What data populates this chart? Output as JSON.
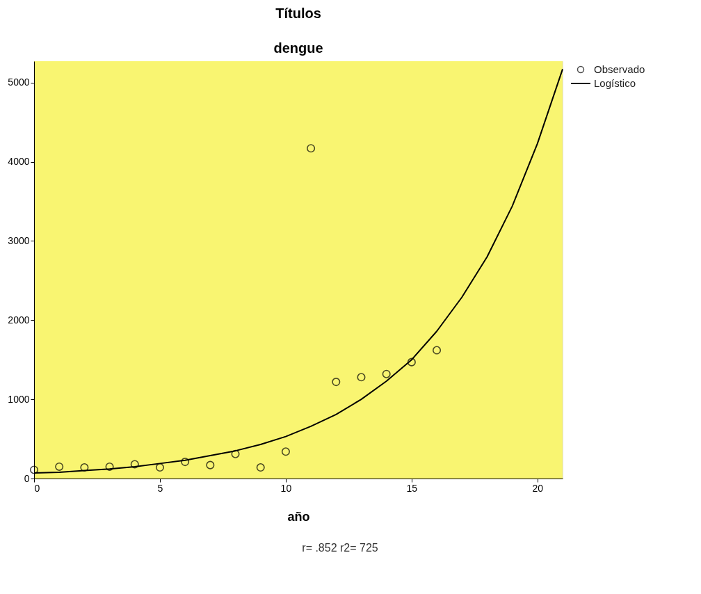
{
  "chart_data": {
    "type": "scatter",
    "title": "Títulos",
    "subtitle": "dengue",
    "xlabel": "año",
    "annotations": [
      "r= .852 r2= 725"
    ],
    "series": [
      {
        "name": "Observado",
        "type": "scatter",
        "marker": "circle",
        "color": "#000000",
        "x": [
          0,
          1,
          2,
          3,
          4,
          5,
          6,
          7,
          8,
          9,
          10,
          11,
          12,
          13,
          14,
          15,
          16
        ],
        "values": [
          110,
          150,
          140,
          150,
          180,
          140,
          210,
          170,
          310,
          140,
          340,
          4170,
          1220,
          1280,
          1320,
          1470,
          1620
        ]
      },
      {
        "name": "Logístico",
        "type": "line",
        "marker": "none",
        "line_style": "solid",
        "color": "#000000",
        "x": [
          0,
          1,
          2,
          3,
          4,
          5,
          6,
          7,
          8,
          9,
          10,
          11,
          12,
          13,
          14,
          15,
          16,
          17,
          18,
          19,
          20,
          21
        ],
        "values": [
          70,
          80,
          100,
          120,
          150,
          190,
          230,
          290,
          350,
          430,
          530,
          660,
          810,
          1000,
          1230,
          1500,
          1860,
          2290,
          2800,
          3440,
          4230,
          5170
        ]
      }
    ],
    "xlim": [
      0,
      21
    ],
    "ylim": [
      0,
      5270
    ],
    "xticks": [
      0,
      5,
      10,
      15,
      20
    ],
    "yticks": [
      0,
      1000,
      2000,
      3000,
      4000,
      5000
    ],
    "grid": false,
    "legend": "top right"
  }
}
